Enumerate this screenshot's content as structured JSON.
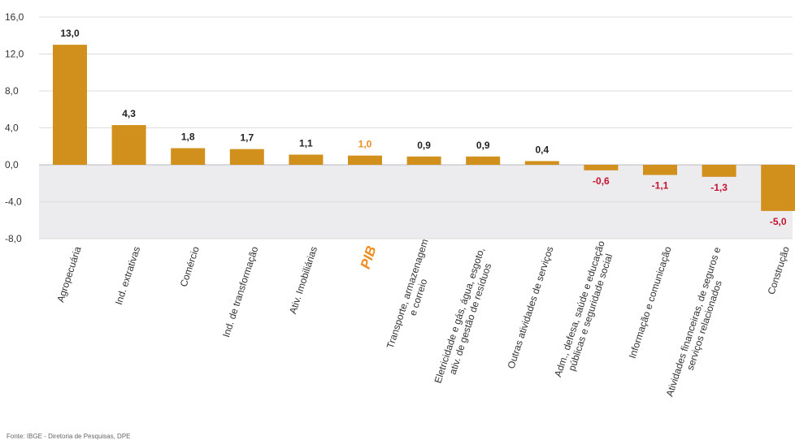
{
  "colors": {
    "bar": "#d18f1b",
    "highlight_label": "#f08c1e",
    "negative_label": "#c4122f",
    "positive_label": "#222222",
    "negative_band": "#ececef",
    "grid": "#dddddd"
  },
  "source": "Fonte: IBGE - Diretoria de Pesquisas, DPE",
  "chart_data": {
    "type": "bar",
    "title": "",
    "xlabel": "",
    "ylabel": "",
    "ylim": [
      -8,
      16
    ],
    "yticks": [
      "16,0",
      "12,0",
      "8,0",
      "4,0",
      "0,0",
      "-4,0",
      "-8,0"
    ],
    "ytick_values": [
      16,
      12,
      8,
      4,
      0,
      -4,
      -8
    ],
    "grid": true,
    "highlight_category": "PIB",
    "categories": [
      [
        "Agropecuária"
      ],
      [
        "Ind. extrativas"
      ],
      [
        "Comércio"
      ],
      [
        "Ind. de transformação"
      ],
      [
        "Ativ. Imobiliárias"
      ],
      [
        "PIB"
      ],
      [
        "Transporte, armazenagem",
        "e correio"
      ],
      [
        "Eletricidade e gás, água, esgoto,",
        "ativ. de gestão de resíduos"
      ],
      [
        "Outras atividades de serviços"
      ],
      [
        "Adm., defesa, saúde e educação",
        "públicas e seguridade social"
      ],
      [
        "Informação e comunicação"
      ],
      [
        "Atividades financeiras, de seguros e",
        "serviços relacionados"
      ],
      [
        "Construção"
      ]
    ],
    "values": [
      13.0,
      4.3,
      1.8,
      1.7,
      1.1,
      1.0,
      0.9,
      0.9,
      0.4,
      -0.6,
      -1.1,
      -1.3,
      -5.0
    ],
    "value_labels": [
      "13,0",
      "4,3",
      "1,8",
      "1,7",
      "1,1",
      "1,0",
      "0,9",
      "0,9",
      "0,4",
      "-0,6",
      "-1,1",
      "-1,3",
      "-5,0"
    ]
  }
}
